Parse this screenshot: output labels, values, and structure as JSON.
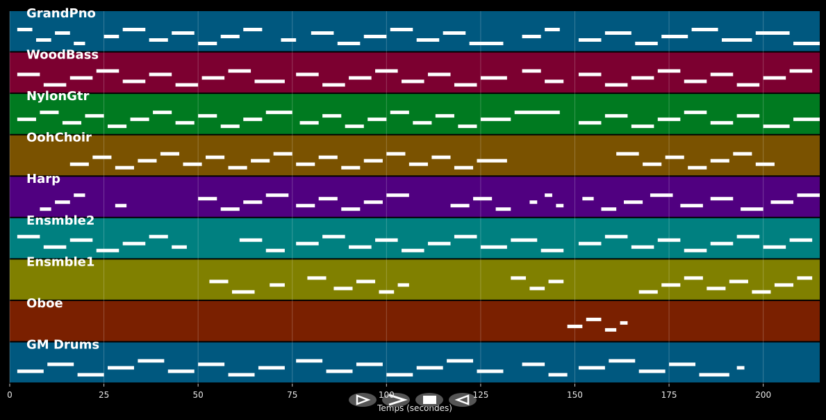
{
  "chart_data": {
    "type": "pianoroll",
    "xlabel": "Temps (secondes)",
    "xlim": [
      0,
      215
    ],
    "xticks": [
      0,
      25,
      50,
      75,
      100,
      125,
      150,
      175,
      200
    ],
    "grid": true,
    "note_color": "#ffffff",
    "series": [
      {
        "name": "GrandPno",
        "color": "#00587f",
        "notes": [
          [
            2,
            6
          ],
          [
            7,
            11
          ],
          [
            12,
            16
          ],
          [
            17,
            20
          ],
          [
            25,
            29
          ],
          [
            30,
            36
          ],
          [
            37,
            42
          ],
          [
            43,
            49
          ],
          [
            50,
            55
          ],
          [
            56,
            61
          ],
          [
            62,
            67
          ],
          [
            72,
            76
          ],
          [
            80,
            86
          ],
          [
            87,
            93
          ],
          [
            94,
            100
          ],
          [
            101,
            107
          ],
          [
            108,
            114
          ],
          [
            115,
            121
          ],
          [
            122,
            131
          ],
          [
            136,
            141
          ],
          [
            142,
            146
          ],
          [
            151,
            157
          ],
          [
            158,
            165
          ],
          [
            166,
            172
          ],
          [
            173,
            180
          ],
          [
            181,
            188
          ],
          [
            189,
            197
          ],
          [
            198,
            207
          ],
          [
            208,
            215
          ]
        ]
      },
      {
        "name": "WoodBass",
        "color": "#7c0030",
        "notes": [
          [
            2,
            8
          ],
          [
            9,
            15
          ],
          [
            16,
            22
          ],
          [
            23,
            29
          ],
          [
            30,
            36
          ],
          [
            37,
            43
          ],
          [
            44,
            50
          ],
          [
            51,
            57
          ],
          [
            58,
            64
          ],
          [
            65,
            73
          ],
          [
            76,
            82
          ],
          [
            83,
            89
          ],
          [
            90,
            96
          ],
          [
            97,
            103
          ],
          [
            104,
            110
          ],
          [
            111,
            117
          ],
          [
            118,
            124
          ],
          [
            125,
            132
          ],
          [
            136,
            141
          ],
          [
            142,
            147
          ],
          [
            151,
            157
          ],
          [
            158,
            164
          ],
          [
            165,
            171
          ],
          [
            172,
            178
          ],
          [
            179,
            185
          ],
          [
            186,
            192
          ],
          [
            193,
            199
          ],
          [
            200,
            206
          ],
          [
            207,
            213
          ]
        ]
      },
      {
        "name": "NylonGtr",
        "color": "#007a20",
        "notes": [
          [
            2,
            7
          ],
          [
            8,
            13
          ],
          [
            14,
            19
          ],
          [
            20,
            25
          ],
          [
            26,
            31
          ],
          [
            32,
            37
          ],
          [
            38,
            43
          ],
          [
            44,
            49
          ],
          [
            50,
            55
          ],
          [
            56,
            61
          ],
          [
            62,
            67
          ],
          [
            68,
            75
          ],
          [
            77,
            82
          ],
          [
            83,
            88
          ],
          [
            89,
            94
          ],
          [
            95,
            100
          ],
          [
            101,
            106
          ],
          [
            107,
            112
          ],
          [
            113,
            118
          ],
          [
            119,
            124
          ],
          [
            125,
            133
          ],
          [
            134,
            146
          ],
          [
            151,
            157
          ],
          [
            158,
            164
          ],
          [
            165,
            171
          ],
          [
            172,
            178
          ],
          [
            179,
            185
          ],
          [
            186,
            192
          ],
          [
            193,
            199
          ],
          [
            200,
            207
          ],
          [
            208,
            215
          ]
        ]
      },
      {
        "name": "OohChoir",
        "color": "#7a5200",
        "notes": [
          [
            16,
            21
          ],
          [
            22,
            27
          ],
          [
            28,
            33
          ],
          [
            34,
            39
          ],
          [
            40,
            45
          ],
          [
            46,
            51
          ],
          [
            52,
            57
          ],
          [
            58,
            63
          ],
          [
            64,
            69
          ],
          [
            70,
            75
          ],
          [
            76,
            81
          ],
          [
            82,
            87
          ],
          [
            88,
            93
          ],
          [
            94,
            99
          ],
          [
            100,
            105
          ],
          [
            106,
            111
          ],
          [
            112,
            117
          ],
          [
            118,
            123
          ],
          [
            124,
            132
          ],
          [
            161,
            167
          ],
          [
            168,
            173
          ],
          [
            174,
            179
          ],
          [
            180,
            185
          ],
          [
            186,
            191
          ],
          [
            192,
            197
          ],
          [
            198,
            203
          ]
        ]
      },
      {
        "name": "Harp",
        "color": "#500080",
        "notes": [
          [
            8,
            11
          ],
          [
            12,
            16
          ],
          [
            17,
            20
          ],
          [
            28,
            31
          ],
          [
            50,
            55
          ],
          [
            56,
            61
          ],
          [
            62,
            67
          ],
          [
            68,
            74
          ],
          [
            76,
            81
          ],
          [
            82,
            87
          ],
          [
            88,
            93
          ],
          [
            94,
            99
          ],
          [
            100,
            106
          ],
          [
            117,
            122
          ],
          [
            123,
            128
          ],
          [
            129,
            133
          ],
          [
            138,
            140
          ],
          [
            142,
            144
          ],
          [
            145,
            147
          ],
          [
            152,
            155
          ],
          [
            157,
            161
          ],
          [
            163,
            168
          ],
          [
            170,
            176
          ],
          [
            178,
            184
          ],
          [
            186,
            192
          ],
          [
            194,
            200
          ],
          [
            202,
            208
          ],
          [
            209,
            215
          ]
        ]
      },
      {
        "name": "Ensmble2",
        "color": "#008080",
        "notes": [
          [
            2,
            8
          ],
          [
            9,
            15
          ],
          [
            16,
            22
          ],
          [
            23,
            29
          ],
          [
            30,
            36
          ],
          [
            37,
            42
          ],
          [
            43,
            47
          ],
          [
            61,
            67
          ],
          [
            68,
            73
          ],
          [
            76,
            82
          ],
          [
            83,
            89
          ],
          [
            90,
            96
          ],
          [
            97,
            103
          ],
          [
            104,
            110
          ],
          [
            111,
            117
          ],
          [
            118,
            124
          ],
          [
            125,
            132
          ],
          [
            133,
            140
          ],
          [
            141,
            147
          ],
          [
            151,
            157
          ],
          [
            158,
            164
          ],
          [
            165,
            171
          ],
          [
            172,
            178
          ],
          [
            179,
            185
          ],
          [
            186,
            192
          ],
          [
            193,
            199
          ],
          [
            200,
            206
          ],
          [
            207,
            213
          ]
        ]
      },
      {
        "name": "Ensmble1",
        "color": "#808000",
        "notes": [
          [
            53,
            58
          ],
          [
            59,
            65
          ],
          [
            69,
            73
          ],
          [
            79,
            84
          ],
          [
            86,
            91
          ],
          [
            92,
            97
          ],
          [
            98,
            102
          ],
          [
            103,
            106
          ],
          [
            133,
            137
          ],
          [
            138,
            142
          ],
          [
            143,
            147
          ],
          [
            167,
            172
          ],
          [
            173,
            178
          ],
          [
            179,
            184
          ],
          [
            185,
            190
          ],
          [
            191,
            196
          ],
          [
            197,
            202
          ],
          [
            203,
            208
          ],
          [
            209,
            213
          ]
        ]
      },
      {
        "name": "Oboe",
        "color": "#7a2000",
        "notes": [
          [
            148,
            152
          ],
          [
            153,
            157
          ],
          [
            158,
            161
          ],
          [
            162,
            164
          ]
        ]
      },
      {
        "name": "GM Drums",
        "color": "#00587f",
        "notes": [
          [
            2,
            9
          ],
          [
            10,
            17
          ],
          [
            18,
            25
          ],
          [
            26,
            33
          ],
          [
            34,
            41
          ],
          [
            42,
            49
          ],
          [
            50,
            57
          ],
          [
            58,
            65
          ],
          [
            66,
            73
          ],
          [
            76,
            83
          ],
          [
            84,
            91
          ],
          [
            92,
            99
          ],
          [
            100,
            107
          ],
          [
            108,
            115
          ],
          [
            116,
            123
          ],
          [
            124,
            131
          ],
          [
            136,
            142
          ],
          [
            143,
            148
          ],
          [
            151,
            158
          ],
          [
            159,
            166
          ],
          [
            167,
            174
          ],
          [
            175,
            182
          ],
          [
            183,
            191
          ],
          [
            193,
            195
          ]
        ]
      }
    ]
  }
}
